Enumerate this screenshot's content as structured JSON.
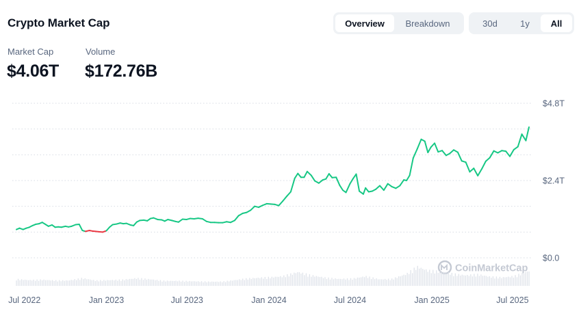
{
  "header": {
    "title": "Crypto Market Cap",
    "view_tabs": [
      {
        "label": "Overview",
        "active": true
      },
      {
        "label": "Breakdown",
        "active": false
      }
    ],
    "range_tabs": [
      {
        "label": "30d",
        "active": false
      },
      {
        "label": "1y",
        "active": false
      },
      {
        "label": "All",
        "active": true
      }
    ]
  },
  "stats": {
    "market_cap_label": "Market Cap",
    "market_cap_value": "$4.06T",
    "volume_label": "Volume",
    "volume_value": "$172.76B"
  },
  "watermark": {
    "text": "CoinMarketCap",
    "icon": "coinmarketcap-logo-icon"
  },
  "colors": {
    "up": "#16c784",
    "down": "#ea3943",
    "grid": "#d6dbe3",
    "volume": "#dfe3ea",
    "axis_text": "#58667e"
  },
  "chart_data": {
    "type": "line",
    "x_unit": "date",
    "y_ticks": [
      "$4.8T",
      "$2.4T",
      "$0.0"
    ],
    "y_tick_values": [
      4.8,
      2.4,
      0.0
    ],
    "x_ticks": [
      "Jul 2022",
      "Jan 2023",
      "Jul 2023",
      "Jan 2024",
      "Jul 2024",
      "Jan 2025",
      "Jul 2025"
    ],
    "x_tick_dates": [
      "2022-07-01",
      "2023-01-01",
      "2023-07-01",
      "2024-01-01",
      "2024-07-01",
      "2025-01-01",
      "2025-07-01"
    ],
    "y_unit": "trillion USD",
    "ylim": [
      0,
      4.8
    ],
    "xlim": [
      "2022-06-13",
      "2025-08-07"
    ],
    "grid": true,
    "legend": "none",
    "series": [
      {
        "color_rule": "red segment where value is below the series start value",
        "x": [
          "2022-06-13",
          "2022-06-20",
          "2022-06-28",
          "2022-07-05",
          "2022-07-12",
          "2022-07-19",
          "2022-07-26",
          "2022-08-03",
          "2022-08-10",
          "2022-08-17",
          "2022-08-24",
          "2022-09-01",
          "2022-09-08",
          "2022-09-15",
          "2022-09-22",
          "2022-10-01",
          "2022-10-08",
          "2022-10-15",
          "2022-10-24",
          "2022-11-01",
          "2022-11-08",
          "2022-11-15",
          "2022-11-24",
          "2022-12-01",
          "2022-12-08",
          "2022-12-15",
          "2022-12-24",
          "2023-01-01",
          "2023-01-08",
          "2023-01-15",
          "2023-01-24",
          "2023-02-01",
          "2023-02-08",
          "2023-02-15",
          "2023-02-24",
          "2023-03-03",
          "2023-03-10",
          "2023-03-17",
          "2023-03-26",
          "2023-04-03",
          "2023-04-10",
          "2023-04-17",
          "2023-04-26",
          "2023-05-05",
          "2023-05-12",
          "2023-05-19",
          "2023-05-28",
          "2023-06-05",
          "2023-06-12",
          "2023-06-21",
          "2023-06-30",
          "2023-07-08",
          "2023-07-17",
          "2023-07-26",
          "2023-08-05",
          "2023-08-14",
          "2023-08-23",
          "2023-09-01",
          "2023-09-10",
          "2023-09-19",
          "2023-09-28",
          "2023-10-07",
          "2023-10-16",
          "2023-10-25",
          "2023-11-03",
          "2023-11-12",
          "2023-11-21",
          "2023-11-30",
          "2023-12-09",
          "2023-12-18",
          "2023-12-27",
          "2024-01-05",
          "2024-01-14",
          "2024-01-23",
          "2024-02-01",
          "2024-02-10",
          "2024-02-19",
          "2024-02-28",
          "2024-03-06",
          "2024-03-13",
          "2024-03-20",
          "2024-03-27",
          "2024-04-05",
          "2024-04-13",
          "2024-04-22",
          "2024-05-01",
          "2024-05-08",
          "2024-05-15",
          "2024-05-22",
          "2024-05-31",
          "2024-06-08",
          "2024-06-15",
          "2024-06-22",
          "2024-07-01",
          "2024-07-08",
          "2024-07-15",
          "2024-07-22",
          "2024-07-31",
          "2024-08-05",
          "2024-08-12",
          "2024-08-20",
          "2024-08-28",
          "2024-09-06",
          "2024-09-15",
          "2024-09-24",
          "2024-10-03",
          "2024-10-12",
          "2024-10-21",
          "2024-10-30",
          "2024-11-05",
          "2024-11-12",
          "2024-11-20",
          "2024-11-29",
          "2024-12-08",
          "2024-12-16",
          "2024-12-23",
          "2024-12-30",
          "2025-01-07",
          "2025-01-15",
          "2025-01-24",
          "2025-02-02",
          "2025-02-10",
          "2025-02-19",
          "2025-02-28",
          "2025-03-09",
          "2025-03-18",
          "2025-03-27",
          "2025-04-05",
          "2025-04-14",
          "2025-04-23",
          "2025-05-02",
          "2025-05-11",
          "2025-05-20",
          "2025-05-29",
          "2025-06-07",
          "2025-06-16",
          "2025-06-25",
          "2025-07-04",
          "2025-07-13",
          "2025-07-22",
          "2025-07-31",
          "2025-08-07"
        ],
        "values": [
          0.88,
          0.92,
          0.88,
          0.92,
          0.95,
          1.0,
          1.04,
          1.06,
          1.1,
          1.04,
          0.98,
          1.02,
          0.95,
          0.96,
          0.95,
          0.98,
          0.96,
          0.98,
          1.03,
          1.04,
          0.85,
          0.82,
          0.85,
          0.83,
          0.82,
          0.81,
          0.8,
          0.84,
          0.95,
          1.03,
          1.05,
          1.08,
          1.06,
          1.07,
          1.02,
          1.0,
          1.11,
          1.16,
          1.17,
          1.15,
          1.22,
          1.24,
          1.19,
          1.18,
          1.14,
          1.19,
          1.16,
          1.13,
          1.11,
          1.2,
          1.19,
          1.22,
          1.21,
          1.23,
          1.21,
          1.13,
          1.1,
          1.1,
          1.09,
          1.09,
          1.12,
          1.1,
          1.16,
          1.31,
          1.38,
          1.41,
          1.48,
          1.6,
          1.57,
          1.63,
          1.68,
          1.67,
          1.66,
          1.62,
          1.76,
          1.91,
          2.05,
          2.47,
          2.62,
          2.5,
          2.5,
          2.68,
          2.56,
          2.39,
          2.32,
          2.42,
          2.45,
          2.61,
          2.49,
          2.5,
          2.25,
          2.1,
          2.03,
          2.3,
          2.46,
          2.6,
          2.07,
          1.98,
          2.17,
          2.05,
          2.07,
          2.13,
          2.24,
          2.1,
          2.3,
          2.21,
          2.16,
          2.24,
          2.42,
          2.4,
          2.56,
          3.1,
          3.38,
          3.68,
          3.62,
          3.27,
          3.44,
          3.56,
          3.29,
          3.33,
          3.18,
          3.24,
          3.35,
          3.28,
          3.01,
          2.97,
          2.67,
          2.78,
          2.55,
          2.76,
          3.0,
          3.11,
          3.32,
          3.26,
          3.33,
          3.31,
          3.15,
          3.36,
          3.45,
          3.84,
          3.64,
          4.06
        ]
      }
    ],
    "volume": {
      "unit": "relative (0-1 of bar band)",
      "x": [
        "2022-06-13",
        "2022-07-12",
        "2022-08-10",
        "2022-09-08",
        "2022-10-08",
        "2022-11-08",
        "2022-12-08",
        "2023-01-08",
        "2023-02-08",
        "2023-03-10",
        "2023-04-10",
        "2023-05-12",
        "2023-06-12",
        "2023-07-17",
        "2023-08-14",
        "2023-09-19",
        "2023-10-16",
        "2023-11-12",
        "2023-12-09",
        "2024-01-05",
        "2024-02-01",
        "2024-03-06",
        "2024-04-05",
        "2024-05-08",
        "2024-06-08",
        "2024-07-08",
        "2024-08-05",
        "2024-09-06",
        "2024-10-03",
        "2024-11-05",
        "2024-11-29",
        "2024-12-23",
        "2025-01-24",
        "2025-02-19",
        "2025-03-18",
        "2025-04-14",
        "2025-05-11",
        "2025-06-07",
        "2025-07-04",
        "2025-08-07"
      ],
      "values": [
        0.35,
        0.3,
        0.32,
        0.28,
        0.28,
        0.4,
        0.28,
        0.3,
        0.32,
        0.4,
        0.34,
        0.26,
        0.26,
        0.24,
        0.22,
        0.22,
        0.3,
        0.38,
        0.42,
        0.45,
        0.5,
        0.72,
        0.55,
        0.42,
        0.36,
        0.38,
        0.5,
        0.34,
        0.36,
        0.62,
        1.0,
        0.8,
        0.74,
        0.62,
        0.55,
        0.6,
        0.48,
        0.44,
        0.5,
        0.78
      ]
    }
  }
}
